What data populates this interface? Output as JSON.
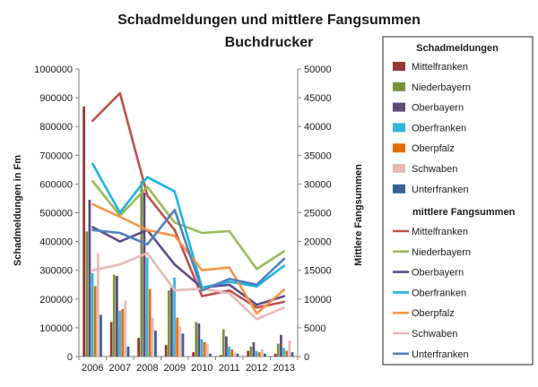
{
  "chart_data": {
    "type": "bar",
    "title": "Schadmeldungen und mittlere Fangsummen",
    "subtitle": "Buchdrucker",
    "categories": [
      "2006",
      "2007",
      "2008",
      "2009",
      "2010",
      "2011",
      "2012",
      "2013"
    ],
    "ylabel_left": "Schadmeldungen in Fm",
    "ylabel_right": "Mittlere Fangsummen",
    "ylim_left": [
      0,
      1000000
    ],
    "ylim_right": [
      0,
      50000
    ],
    "yticks_left": [
      "0",
      "100000",
      "200000",
      "300000",
      "400000",
      "500000",
      "600000",
      "700000",
      "800000",
      "900000",
      "1000000"
    ],
    "yticks_right": [
      "0",
      "5000",
      "10000",
      "15000",
      "20000",
      "25000",
      "30000",
      "35000",
      "40000",
      "45000",
      "50000"
    ],
    "grid": false,
    "legend_position": "right",
    "bar_group_title": "Schadmeldungen",
    "line_group_title": "mittlere Fangsummen",
    "bar_series": [
      {
        "name": "Mittelfranken",
        "color": "#953735",
        "values": [
          870000,
          120000,
          65000,
          40000,
          15000,
          5000,
          20000,
          10000
        ]
      },
      {
        "name": "Niederbayern",
        "color": "#77933c",
        "values": [
          435000,
          285000,
          610000,
          230000,
          120000,
          95000,
          35000,
          45000
        ]
      },
      {
        "name": "Oberbayern",
        "color": "#604a7b",
        "values": [
          545000,
          280000,
          570000,
          240000,
          115000,
          70000,
          50000,
          75000
        ]
      },
      {
        "name": "Oberfranken",
        "color": "#31b5db",
        "values": [
          290000,
          160000,
          345000,
          275000,
          60000,
          35000,
          20000,
          30000
        ]
      },
      {
        "name": "Oberpfalz",
        "color": "#e36c09",
        "values": [
          245000,
          165000,
          235000,
          135000,
          50000,
          25000,
          15000,
          20000
        ]
      },
      {
        "name": "Schwaben",
        "color": "#e6b9b8",
        "values": [
          360000,
          195000,
          135000,
          105000,
          45000,
          15000,
          25000,
          55000
        ]
      },
      {
        "name": "Unterfranken",
        "color": "#366092",
        "values": [
          145000,
          35000,
          90000,
          80000,
          10000,
          10000,
          10000,
          15000
        ]
      }
    ],
    "line_series": [
      {
        "name": "Mittelfranken",
        "color": "#c0504d",
        "values": [
          41000,
          45800,
          28000,
          22000,
          10500,
          11500,
          8500,
          9500
        ]
      },
      {
        "name": "Niederbayern",
        "color": "#9bbb59",
        "values": [
          30500,
          24500,
          29500,
          23300,
          21500,
          21800,
          15200,
          18300
        ]
      },
      {
        "name": "Oberbayern",
        "color": "#5f4b8b",
        "values": [
          22500,
          20000,
          22000,
          16000,
          12000,
          12500,
          9000,
          10500
        ]
      },
      {
        "name": "Oberfranken",
        "color": "#1fb3e0",
        "values": [
          33500,
          25000,
          31200,
          28700,
          12000,
          13000,
          12200,
          15800
        ]
      },
      {
        "name": "Oberpfalz",
        "color": "#f79646",
        "values": [
          26500,
          24300,
          22000,
          21000,
          15000,
          15500,
          7500,
          11600
        ]
      },
      {
        "name": "Schwaben",
        "color": "#e6b9b8",
        "values": [
          15000,
          16000,
          18000,
          11500,
          11800,
          11000,
          6500,
          8500
        ]
      },
      {
        "name": "Unterfranken",
        "color": "#4f81bd",
        "values": [
          22000,
          21500,
          19500,
          25500,
          11500,
          13500,
          12500,
          17000
        ]
      }
    ]
  }
}
